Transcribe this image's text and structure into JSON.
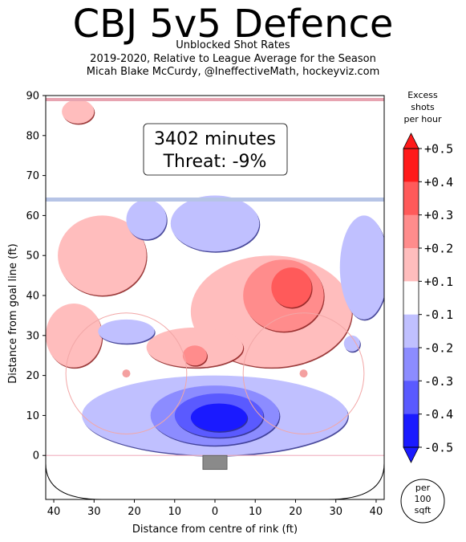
{
  "header": {
    "title": "CBJ 5v5 Defence",
    "subtitle_lines": [
      "Unblocked Shot Rates",
      "2019-2020, Relative to League Average for the Season",
      "Micah Blake McCurdy, @IneffectiveMath, hockeyviz.com"
    ]
  },
  "chart_data": {
    "type": "heatmap",
    "title": "CBJ 5v5 Defence",
    "xlabel": "Distance from centre of rink (ft)",
    "ylabel": "Distance from goal line (ft)",
    "xlim": [
      -42,
      42
    ],
    "ylim": [
      -11,
      90
    ],
    "x_ticks": [
      -40,
      -30,
      -20,
      -10,
      0,
      10,
      20,
      30,
      40
    ],
    "x_tick_labels": [
      "40",
      "30",
      "20",
      "10",
      "0",
      "10",
      "20",
      "30",
      "40"
    ],
    "y_ticks": [
      0,
      10,
      20,
      30,
      40,
      50,
      60,
      70,
      80,
      90
    ],
    "annotation": {
      "minutes": "3402 minutes",
      "threat": "Threat: -9%"
    },
    "colorbar": {
      "label_lines": [
        "Excess",
        "shots",
        "per hour"
      ],
      "ticks": [
        "+0.5",
        "+0.4",
        "+0.3",
        "+0.2",
        "+0.1",
        "-0.1",
        "-0.2",
        "-0.3",
        "-0.4",
        "-0.5"
      ],
      "levels": [
        {
          "range": [
            0.4,
            0.5
          ],
          "color": "#ff1a1a"
        },
        {
          "range": [
            0.3,
            0.4
          ],
          "color": "#ff5a5a"
        },
        {
          "range": [
            0.2,
            0.3
          ],
          "color": "#ff8c8c"
        },
        {
          "range": [
            0.1,
            0.2
          ],
          "color": "#ffbdbd"
        },
        {
          "range": [
            -0.1,
            0.1
          ],
          "color": "#ffffff"
        },
        {
          "range": [
            -0.2,
            -0.1
          ],
          "color": "#c0c0ff"
        },
        {
          "range": [
            -0.3,
            -0.2
          ],
          "color": "#8c8cff"
        },
        {
          "range": [
            -0.4,
            -0.3
          ],
          "color": "#5a5aff"
        },
        {
          "range": [
            -0.5,
            -0.4
          ],
          "color": "#1a1aff"
        }
      ],
      "unit_lines": [
        "per",
        "100",
        "sqft"
      ]
    },
    "rink": {
      "goal_line_y": 0,
      "blue_line_y": 64,
      "red_line_y": 89,
      "faceoff_circles": [
        {
          "x": -22,
          "y": 20.5,
          "r": 15
        },
        {
          "x": 22,
          "y": 20.5,
          "r": 15
        }
      ]
    },
    "regions": [
      {
        "name": "slot-deficit",
        "level": -0.15,
        "cx": 0,
        "cy": 10,
        "rx": 33,
        "ry": 10
      },
      {
        "name": "slot-deficit-2",
        "level": -0.25,
        "cx": 0,
        "cy": 10,
        "rx": 16,
        "ry": 7.5
      },
      {
        "name": "slot-deficit-3",
        "level": -0.35,
        "cx": 1,
        "cy": 10,
        "rx": 11,
        "ry": 5.5
      },
      {
        "name": "slot-deficit-core",
        "level": -0.45,
        "cx": 1,
        "cy": 9.5,
        "rx": 7,
        "ry": 3.5
      },
      {
        "name": "right-point-excess",
        "level": 0.15,
        "cx": 14,
        "cy": 36,
        "rx": 20,
        "ry": 14
      },
      {
        "name": "right-point-excess-2",
        "level": 0.25,
        "cx": 17,
        "cy": 40,
        "rx": 10,
        "ry": 9
      },
      {
        "name": "right-point-excess-3",
        "level": 0.35,
        "cx": 19,
        "cy": 42,
        "rx": 5,
        "ry": 5
      },
      {
        "name": "left-high-excess",
        "level": 0.15,
        "cx": -28,
        "cy": 50,
        "rx": 11,
        "ry": 10
      },
      {
        "name": "left-circle-excess",
        "level": 0.15,
        "cx": -35,
        "cy": 30,
        "rx": 7,
        "ry": 8
      },
      {
        "name": "centre-excess",
        "level": 0.15,
        "cx": -5,
        "cy": 27,
        "rx": 12,
        "ry": 5
      },
      {
        "name": "centre-excess-2",
        "level": 0.25,
        "cx": -5,
        "cy": 25,
        "rx": 3,
        "ry": 2.5
      },
      {
        "name": "top-left-excess",
        "level": 0.15,
        "cx": -34,
        "cy": 86,
        "rx": 4,
        "ry": 3
      },
      {
        "name": "right-high-deficit",
        "level": -0.15,
        "cx": 37,
        "cy": 47,
        "rx": 6,
        "ry": 13
      },
      {
        "name": "blue-line-deficit",
        "level": -0.15,
        "cx": -17,
        "cy": 59,
        "rx": 5,
        "ry": 5
      },
      {
        "name": "top-deficit",
        "level": -0.15,
        "cx": 0,
        "cy": 58,
        "rx": 11,
        "ry": 7
      },
      {
        "name": "left-circle-deficit",
        "level": -0.15,
        "cx": -22,
        "cy": 31,
        "rx": 7,
        "ry": 3
      },
      {
        "name": "right-faceoff-deficit",
        "level": -0.15,
        "cx": 34,
        "cy": 28,
        "rx": 2,
        "ry": 2
      }
    ]
  }
}
